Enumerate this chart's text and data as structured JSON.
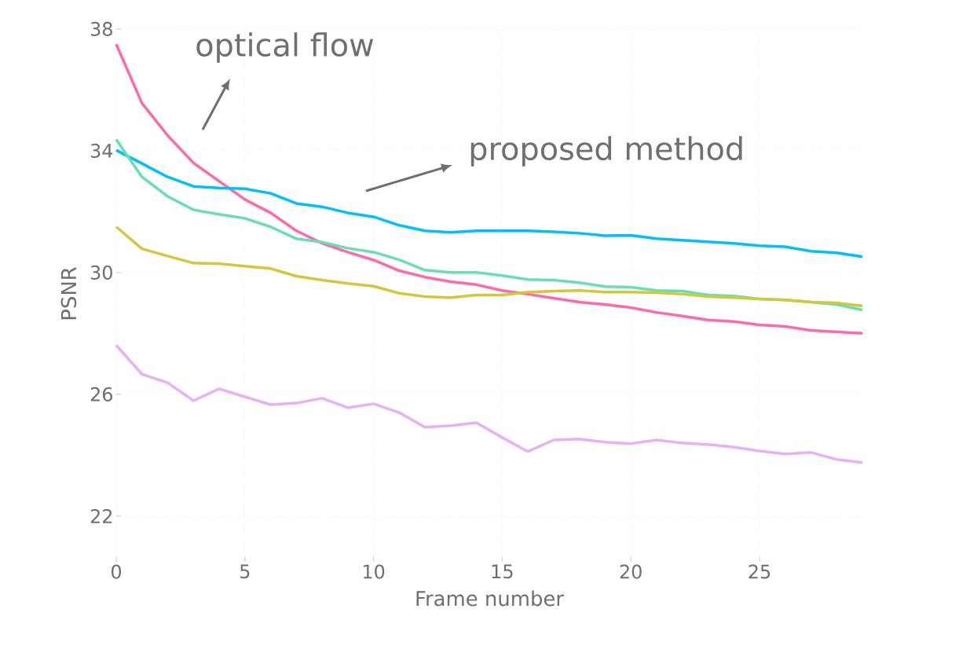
{
  "chart_data": {
    "type": "line",
    "xlabel": "Frame number",
    "ylabel": "PSNR",
    "annotations": [
      "optical flow",
      "proposed method"
    ],
    "x": [
      0,
      1,
      2,
      3,
      4,
      5,
      6,
      7,
      8,
      9,
      10,
      11,
      12,
      13,
      14,
      15,
      16,
      17,
      18,
      19,
      20,
      21,
      22,
      23,
      24,
      25,
      26,
      27,
      28,
      29
    ],
    "xlim": [
      0,
      29
    ],
    "ylim": [
      20.5,
      38.1
    ],
    "xticks": [
      0,
      5,
      10,
      15,
      20,
      25
    ],
    "yticks": [
      22,
      26,
      30,
      34,
      38
    ],
    "grid": true,
    "line_style": "solid",
    "marker": "none",
    "series": [
      {
        "color": "#ff69a8",
        "values": [
          37.5,
          35.56,
          34.5,
          33.6,
          33.0,
          32.4,
          31.96,
          31.37,
          30.96,
          30.67,
          30.41,
          30.06,
          29.85,
          29.7,
          29.6,
          29.41,
          29.29,
          29.16,
          29.03,
          28.95,
          28.85,
          28.69,
          28.57,
          28.44,
          28.39,
          28.28,
          28.23,
          28.1,
          28.05,
          28.0
        ]
      },
      {
        "color": "#00bfff",
        "values": [
          34.02,
          33.58,
          33.14,
          32.83,
          32.78,
          32.75,
          32.6,
          32.27,
          32.16,
          31.96,
          31.83,
          31.55,
          31.37,
          31.32,
          31.37,
          31.37,
          31.37,
          31.34,
          31.29,
          31.21,
          31.22,
          31.11,
          31.06,
          31.01,
          30.96,
          30.88,
          30.85,
          30.7,
          30.65,
          30.52
        ]
      },
      {
        "color": "#66e0b0",
        "values": [
          34.37,
          33.14,
          32.5,
          32.06,
          31.91,
          31.78,
          31.5,
          31.11,
          31.0,
          30.8,
          30.67,
          30.42,
          30.08,
          30.0,
          30.0,
          29.9,
          29.77,
          29.75,
          29.67,
          29.54,
          29.52,
          29.41,
          29.39,
          29.26,
          29.23,
          29.13,
          29.1,
          29.03,
          28.95,
          28.77
        ]
      },
      {
        "color": "#d4c83a",
        "values": [
          31.5,
          30.78,
          30.54,
          30.31,
          30.29,
          30.21,
          30.13,
          29.88,
          29.75,
          29.64,
          29.55,
          29.32,
          29.21,
          29.18,
          29.26,
          29.26,
          29.36,
          29.39,
          29.41,
          29.36,
          29.36,
          29.34,
          29.29,
          29.21,
          29.18,
          29.13,
          29.1,
          29.03,
          29.0,
          28.9
        ]
      },
      {
        "color": "#e8b0f8",
        "values": [
          27.61,
          26.66,
          26.38,
          25.79,
          26.18,
          25.92,
          25.66,
          25.71,
          25.87,
          25.56,
          25.69,
          25.4,
          24.92,
          24.97,
          25.07,
          24.58,
          24.12,
          24.5,
          24.53,
          24.43,
          24.38,
          24.5,
          24.4,
          24.35,
          24.27,
          24.14,
          24.04,
          24.09,
          23.86,
          23.76
        ]
      }
    ]
  }
}
